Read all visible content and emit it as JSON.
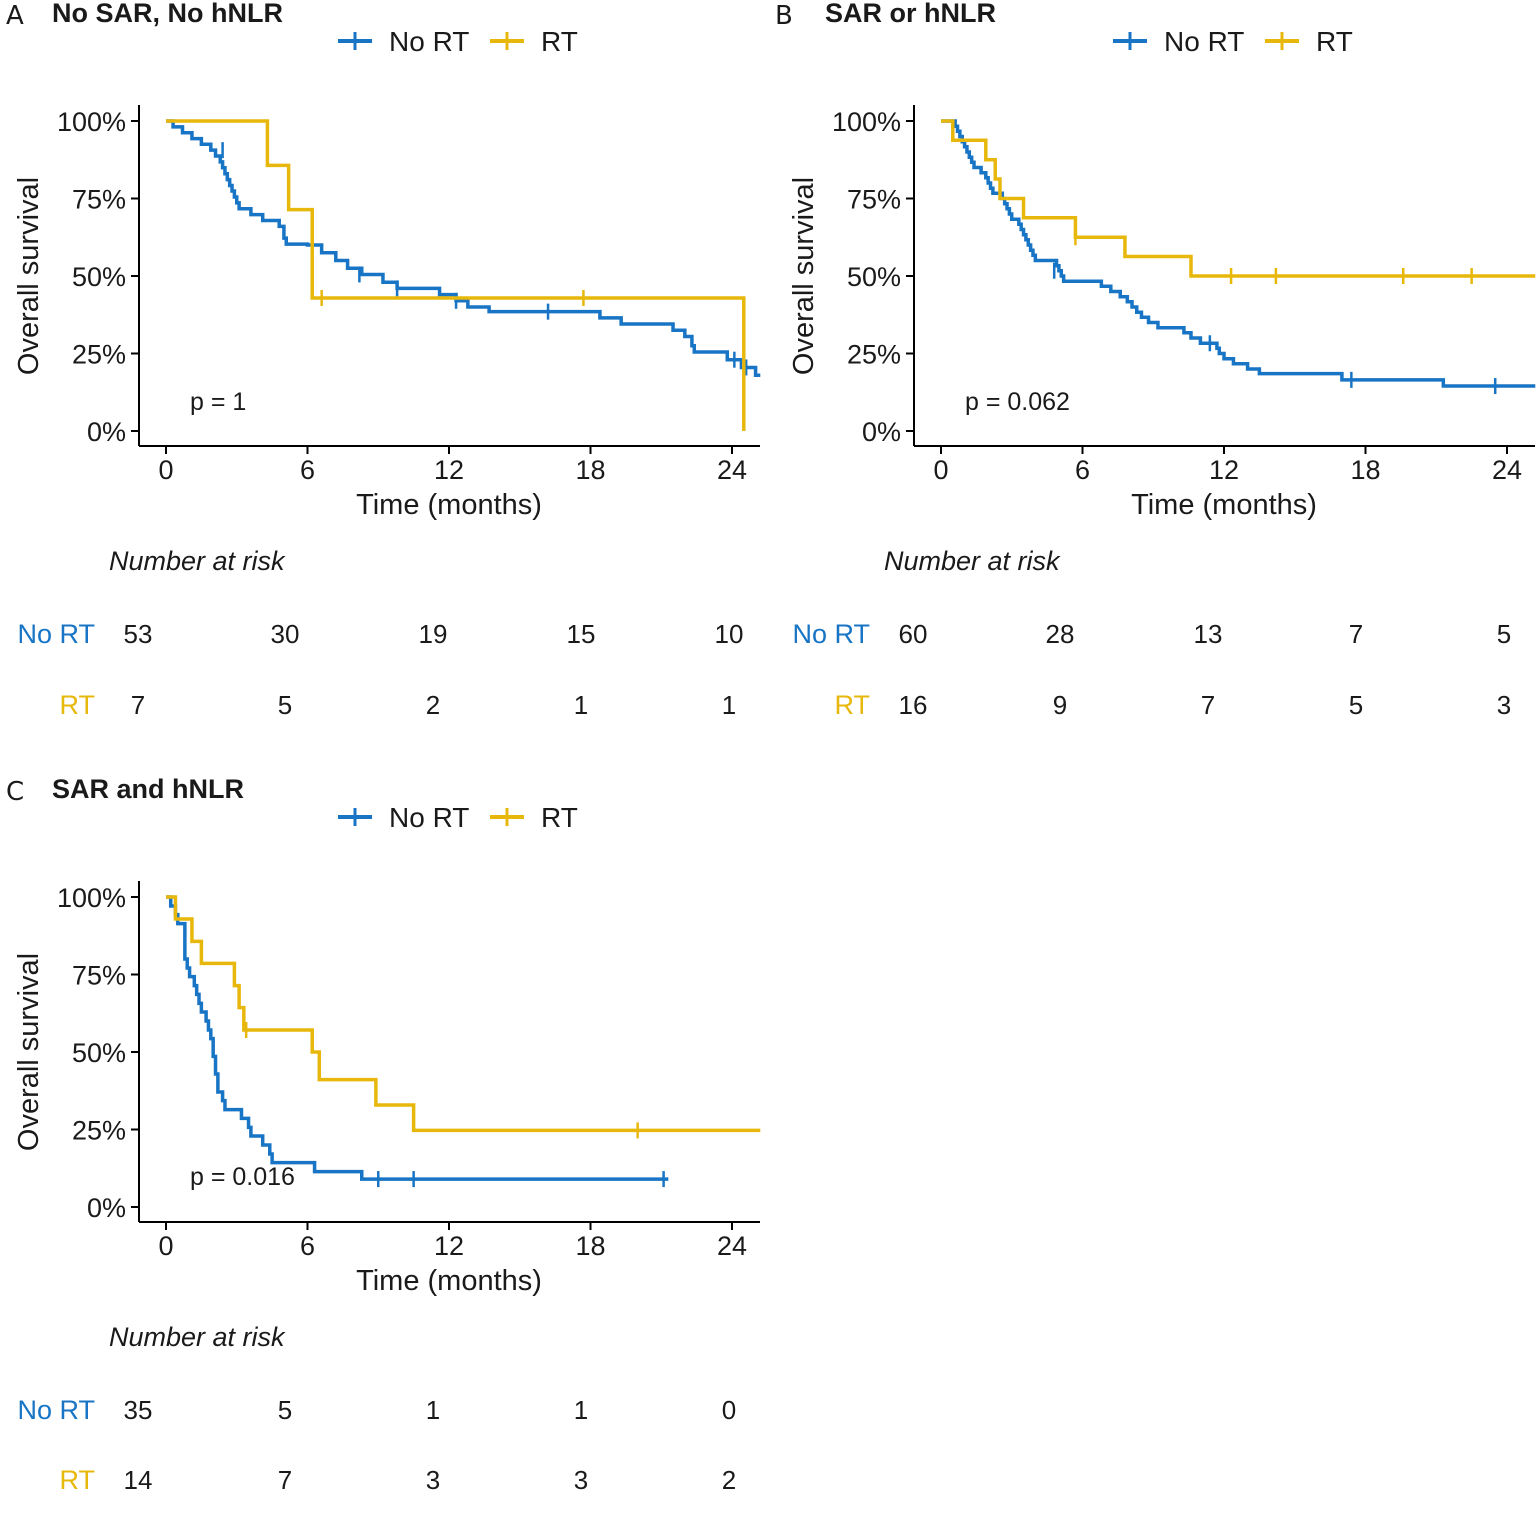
{
  "colors": {
    "no_rt": "#1874c4",
    "rt": "#e8b70b",
    "axis": "#000000",
    "text": "#1a1a1a"
  },
  "chart_data": [
    {
      "type": "line",
      "panel": "A",
      "title": "No SAR, No hNLR",
      "xlabel": "Time (months)",
      "ylabel": "Overall survival",
      "xlim": [
        0,
        25.2
      ],
      "ylim": [
        0,
        1
      ],
      "x_ticks": [
        0,
        6,
        12,
        18,
        24
      ],
      "y_ticks": [
        0,
        0.25,
        0.5,
        0.75,
        1
      ],
      "x_tick_labels": [
        "0",
        "6",
        "12",
        "18",
        "24"
      ],
      "y_tick_labels": [
        "0%",
        "25%",
        "50%",
        "75%",
        "100%"
      ],
      "legend": [
        "No RT",
        "RT"
      ],
      "p_value": "p = 1",
      "series": [
        {
          "name": "No RT",
          "steps": [
            [
              0,
              1
            ],
            [
              0.3,
              0.981
            ],
            [
              0.7,
              0.962
            ],
            [
              1.1,
              0.943
            ],
            [
              1.5,
              0.925
            ],
            [
              1.9,
              0.906
            ],
            [
              2.1,
              0.887
            ],
            [
              2.3,
              0.868
            ],
            [
              2.4,
              0.849
            ],
            [
              2.5,
              0.83
            ],
            [
              2.6,
              0.811
            ],
            [
              2.7,
              0.792
            ],
            [
              2.8,
              0.774
            ],
            [
              2.9,
              0.755
            ],
            [
              3,
              0.736
            ],
            [
              3.1,
              0.717
            ],
            [
              3.6,
              0.698
            ],
            [
              4.1,
              0.679
            ],
            [
              4.8,
              0.66
            ],
            [
              5,
              0.641
            ],
            [
              5,
              0.622
            ],
            [
              5.1,
              0.603
            ],
            [
              6,
              0.6
            ],
            [
              6.6,
              0.575
            ],
            [
              7.2,
              0.55
            ],
            [
              7.7,
              0.525
            ],
            [
              8.3,
              0.505
            ],
            [
              9.2,
              0.48
            ],
            [
              9.8,
              0.46
            ],
            [
              11.6,
              0.44
            ],
            [
              12.3,
              0.42
            ],
            [
              12.8,
              0.4
            ],
            [
              13.7,
              0.385
            ],
            [
              18.4,
              0.365
            ],
            [
              19.3,
              0.345
            ],
            [
              21.5,
              0.325
            ],
            [
              22,
              0.305
            ],
            [
              22.3,
              0.275
            ],
            [
              22.4,
              0.255
            ],
            [
              23.8,
              0.23
            ],
            [
              24.4,
              0.205
            ],
            [
              25,
              0.18
            ]
          ],
          "end": 25.2,
          "censor": [
            [
              2.4,
              0.906
            ],
            [
              8.2,
              0.505
            ],
            [
              9.8,
              0.46
            ],
            [
              12.3,
              0.42
            ],
            [
              16.2,
              0.385
            ],
            [
              24.1,
              0.23
            ],
            [
              24.6,
              0.205
            ]
          ]
        },
        {
          "name": "RT",
          "steps": [
            [
              0,
              1
            ],
            [
              4.3,
              0.857
            ],
            [
              5.2,
              0.714
            ],
            [
              6.2,
              0.429
            ],
            [
              24.5,
              0
            ]
          ],
          "end": 24.5,
          "censor": [
            [
              6.6,
              0.429
            ],
            [
              17.7,
              0.429
            ]
          ]
        }
      ],
      "risk_table": {
        "title": "Number at risk",
        "times": [
          0,
          6,
          12,
          18,
          24
        ],
        "rows": [
          {
            "label": "No RT",
            "values": [
              "53",
              "30",
              "19",
              "15",
              "10"
            ]
          },
          {
            "label": "RT",
            "values": [
              "7",
              "5",
              "2",
              "1",
              "1"
            ]
          }
        ]
      }
    },
    {
      "type": "line",
      "panel": "B",
      "title": "SAR or hNLR",
      "xlabel": "Time (months)",
      "ylabel": "Overall survival",
      "xlim": [
        0,
        25.2
      ],
      "ylim": [
        0,
        1
      ],
      "x_ticks": [
        0,
        6,
        12,
        18,
        24
      ],
      "y_ticks": [
        0,
        0.25,
        0.5,
        0.75,
        1
      ],
      "x_tick_labels": [
        "0",
        "6",
        "12",
        "18",
        "24"
      ],
      "y_tick_labels": [
        "0%",
        "25%",
        "50%",
        "75%",
        "100%"
      ],
      "legend": [
        "No RT",
        "RT"
      ],
      "p_value": "p = 0.062",
      "series": [
        {
          "name": "No RT",
          "steps": [
            [
              0,
              1
            ],
            [
              0.6,
              0.983
            ],
            [
              0.7,
              0.967
            ],
            [
              0.8,
              0.95
            ],
            [
              0.9,
              0.933
            ],
            [
              1,
              0.917
            ],
            [
              1.1,
              0.9
            ],
            [
              1.2,
              0.883
            ],
            [
              1.3,
              0.867
            ],
            [
              1.4,
              0.85
            ],
            [
              1.7,
              0.833
            ],
            [
              1.9,
              0.817
            ],
            [
              2,
              0.8
            ],
            [
              2.1,
              0.783
            ],
            [
              2.2,
              0.767
            ],
            [
              2.6,
              0.75
            ],
            [
              2.7,
              0.733
            ],
            [
              2.8,
              0.717
            ],
            [
              2.9,
              0.7
            ],
            [
              3,
              0.683
            ],
            [
              3.3,
              0.667
            ],
            [
              3.4,
              0.65
            ],
            [
              3.5,
              0.633
            ],
            [
              3.6,
              0.617
            ],
            [
              3.7,
              0.6
            ],
            [
              3.8,
              0.583
            ],
            [
              3.9,
              0.567
            ],
            [
              4,
              0.55
            ],
            [
              4.9,
              0.533
            ],
            [
              5,
              0.517
            ],
            [
              5.1,
              0.5
            ],
            [
              5.2,
              0.483
            ],
            [
              6.8,
              0.467
            ],
            [
              7.2,
              0.45
            ],
            [
              7.6,
              0.433
            ],
            [
              7.9,
              0.417
            ],
            [
              8.1,
              0.4
            ],
            [
              8.3,
              0.383
            ],
            [
              8.5,
              0.367
            ],
            [
              8.8,
              0.35
            ],
            [
              9.2,
              0.333
            ],
            [
              10.3,
              0.317
            ],
            [
              10.6,
              0.3
            ],
            [
              11,
              0.283
            ],
            [
              11.7,
              0.267
            ],
            [
              11.8,
              0.25
            ],
            [
              12,
              0.233
            ],
            [
              12.4,
              0.217
            ],
            [
              13,
              0.2
            ],
            [
              13.5,
              0.185
            ],
            [
              17,
              0.165
            ],
            [
              21.3,
              0.145
            ]
          ],
          "end": 25.2,
          "censor": [
            [
              4.8,
              0.517
            ],
            [
              11.4,
              0.283
            ],
            [
              17.4,
              0.165
            ],
            [
              23.5,
              0.145
            ]
          ]
        },
        {
          "name": "RT",
          "steps": [
            [
              0,
              1
            ],
            [
              0.5,
              0.938
            ],
            [
              1.9,
              0.875
            ],
            [
              2.3,
              0.813
            ],
            [
              2.5,
              0.75
            ],
            [
              3.5,
              0.688
            ],
            [
              5.7,
              0.625
            ],
            [
              7.8,
              0.563
            ],
            [
              10.6,
              0.5
            ]
          ],
          "end": 25.2,
          "censor": [
            [
              5.7,
              0.625
            ],
            [
              12.3,
              0.5
            ],
            [
              14.2,
              0.5
            ],
            [
              19.6,
              0.5
            ],
            [
              22.5,
              0.5
            ]
          ]
        }
      ],
      "risk_table": {
        "title": "Number at risk",
        "times": [
          0,
          6,
          12,
          18,
          24
        ],
        "rows": [
          {
            "label": "No RT",
            "values": [
              "60",
              "28",
              "13",
              "7",
              "5"
            ]
          },
          {
            "label": "RT",
            "values": [
              "16",
              "9",
              "7",
              "5",
              "3"
            ]
          }
        ]
      }
    },
    {
      "type": "line",
      "panel": "C",
      "title": "SAR and hNLR",
      "xlabel": "Time (months)",
      "ylabel": "Overall survival",
      "xlim": [
        0,
        25.2
      ],
      "ylim": [
        0,
        1
      ],
      "x_ticks": [
        0,
        6,
        12,
        18,
        24
      ],
      "y_ticks": [
        0,
        0.25,
        0.5,
        0.75,
        1
      ],
      "x_tick_labels": [
        "0",
        "6",
        "12",
        "18",
        "24"
      ],
      "y_tick_labels": [
        "0%",
        "25%",
        "50%",
        "75%",
        "100%"
      ],
      "legend": [
        "No RT",
        "RT"
      ],
      "p_value": "p = 0.016",
      "series": [
        {
          "name": "No RT",
          "steps": [
            [
              0,
              1
            ],
            [
              0.2,
              0.971
            ],
            [
              0.4,
              0.943
            ],
            [
              0.5,
              0.914
            ],
            [
              0.8,
              0.886
            ],
            [
              0.8,
              0.857
            ],
            [
              0.8,
              0.829
            ],
            [
              0.8,
              0.8
            ],
            [
              0.9,
              0.771
            ],
            [
              1,
              0.743
            ],
            [
              1.2,
              0.714
            ],
            [
              1.3,
              0.686
            ],
            [
              1.4,
              0.657
            ],
            [
              1.5,
              0.629
            ],
            [
              1.7,
              0.6
            ],
            [
              1.8,
              0.571
            ],
            [
              1.9,
              0.543
            ],
            [
              2,
              0.514
            ],
            [
              2,
              0.486
            ],
            [
              2.1,
              0.457
            ],
            [
              2.1,
              0.429
            ],
            [
              2.2,
              0.4
            ],
            [
              2.2,
              0.371
            ],
            [
              2.4,
              0.343
            ],
            [
              2.5,
              0.314
            ],
            [
              3.2,
              0.286
            ],
            [
              3.5,
              0.257
            ],
            [
              3.6,
              0.229
            ],
            [
              4.1,
              0.2
            ],
            [
              4.4,
              0.171
            ],
            [
              4.5,
              0.143
            ],
            [
              6.3,
              0.114
            ],
            [
              8.3,
              0.09
            ]
          ],
          "end": 21.3,
          "censor": [
            [
              9,
              0.09
            ],
            [
              10.5,
              0.09
            ],
            [
              21.1,
              0.09
            ]
          ]
        },
        {
          "name": "RT",
          "steps": [
            [
              0,
              1
            ],
            [
              0.4,
              0.929
            ],
            [
              1.1,
              0.857
            ],
            [
              1.5,
              0.786
            ],
            [
              2.9,
              0.714
            ],
            [
              3.1,
              0.643
            ],
            [
              3.3,
              0.571
            ],
            [
              6.2,
              0.5
            ],
            [
              6.5,
              0.411
            ],
            [
              8.9,
              0.329
            ],
            [
              10.5,
              0.247
            ]
          ],
          "end": 25.2,
          "censor": [
            [
              3.4,
              0.571
            ],
            [
              20,
              0.247
            ]
          ]
        }
      ],
      "risk_table": {
        "title": "Number at risk",
        "times": [
          0,
          6,
          12,
          18,
          24
        ],
        "rows": [
          {
            "label": "No RT",
            "values": [
              "35",
              "5",
              "1",
              "1",
              "0"
            ]
          },
          {
            "label": "RT",
            "values": [
              "14",
              "7",
              "3",
              "3",
              "2"
            ]
          }
        ]
      }
    }
  ]
}
